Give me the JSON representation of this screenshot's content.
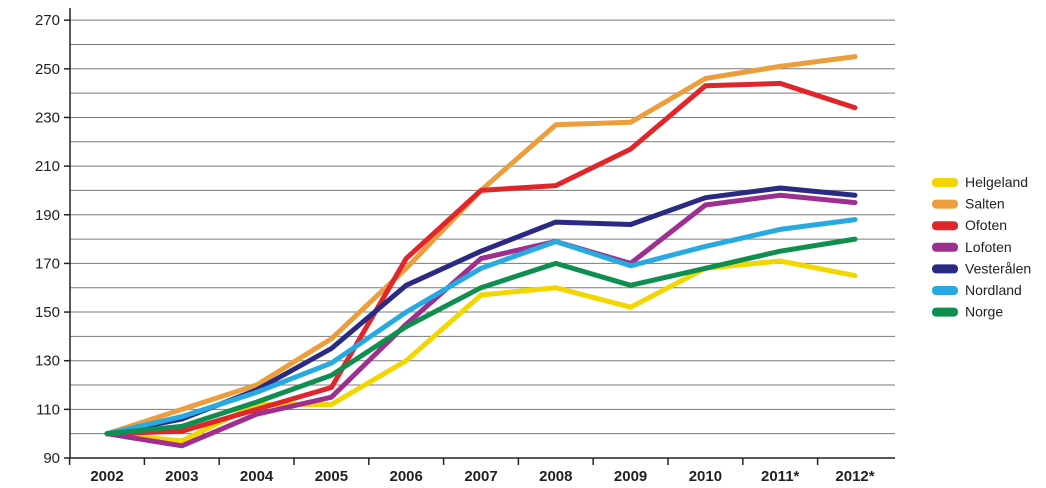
{
  "chart_data": {
    "type": "line",
    "title": "",
    "xlabel": "",
    "ylabel": "",
    "categories": [
      "2002",
      "2003",
      "2004",
      "2005",
      "2006",
      "2007",
      "2008",
      "2009",
      "2010",
      "2011*",
      "2012*"
    ],
    "ylim": [
      90,
      275
    ],
    "yticks": [
      90,
      110,
      130,
      150,
      170,
      190,
      210,
      230,
      250,
      270
    ],
    "grid": "horizontal, every 10 units",
    "legend_position": "right",
    "series": [
      {
        "name": "Helgeland",
        "color": "#f2d600",
        "values": [
          100,
          97,
          112,
          112,
          130,
          157,
          160,
          152,
          168,
          171,
          165
        ]
      },
      {
        "name": "Salten",
        "color": "#eb9e3b",
        "values": [
          100,
          110,
          120,
          139,
          168,
          200,
          227,
          228,
          246,
          251,
          255
        ]
      },
      {
        "name": "Ofoten",
        "color": "#e0262a",
        "values": [
          100,
          101,
          110,
          119,
          172,
          200,
          202,
          217,
          243,
          244,
          234
        ]
      },
      {
        "name": "Lofoten",
        "color": "#9e2e90",
        "values": [
          100,
          95,
          108,
          115,
          145,
          172,
          179,
          170,
          194,
          198,
          195
        ]
      },
      {
        "name": "Vesterålen",
        "color": "#2b2a83",
        "values": [
          100,
          106,
          118,
          135,
          161,
          175,
          187,
          186,
          197,
          201,
          198
        ]
      },
      {
        "name": "Nordland",
        "color": "#27a9e1",
        "values": [
          100,
          107,
          117,
          129,
          150,
          168,
          179,
          169,
          177,
          184,
          188
        ]
      },
      {
        "name": "Norge",
        "color": "#0f8f4f",
        "values": [
          100,
          103,
          113,
          124,
          144,
          160,
          170,
          161,
          168,
          175,
          180
        ]
      }
    ]
  }
}
